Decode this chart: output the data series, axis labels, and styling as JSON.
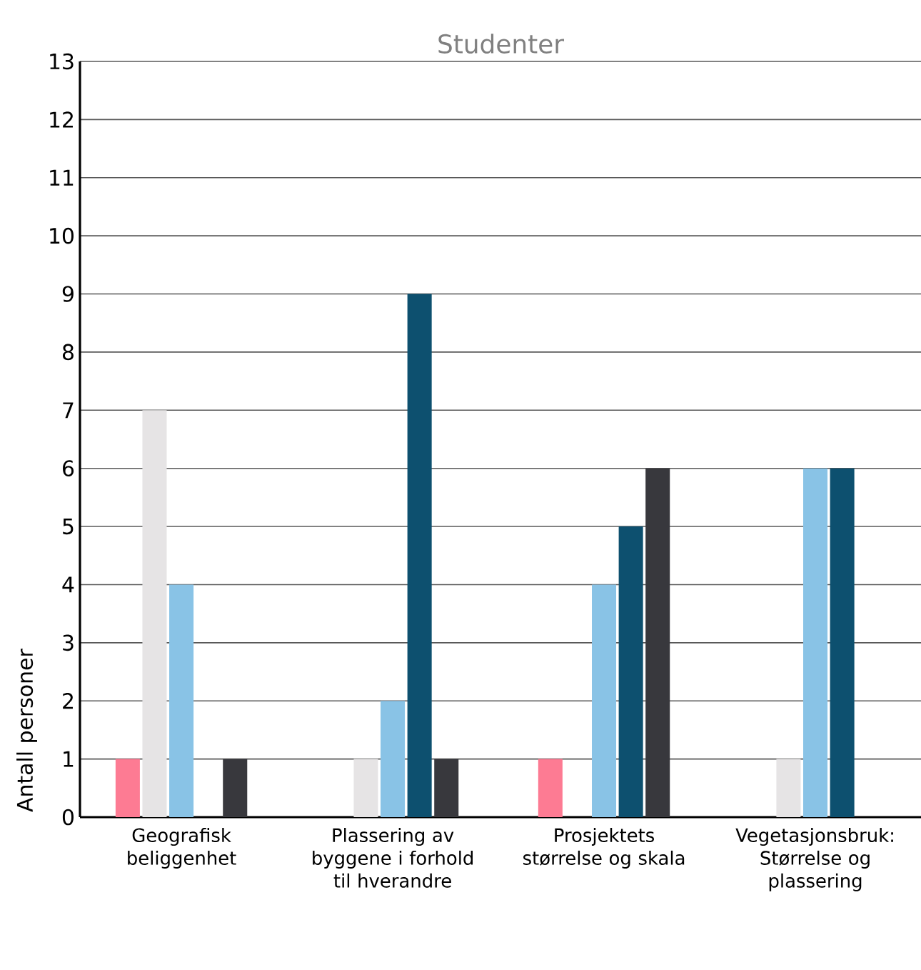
{
  "chart_data": {
    "type": "bar",
    "title": "Studenter",
    "ylabel": "Antall personer",
    "categories": [
      "Geografisk beliggenhet",
      "Plassering av byggene i forhold til hverandre",
      "Prosjektets størrelse og skala",
      "Vegetasjonsbruk: Størrelse og plassering"
    ],
    "series": [
      {
        "color": "#fd7b93",
        "values": [
          1,
          0,
          1,
          0
        ]
      },
      {
        "color": "#e6e4e5",
        "values": [
          7,
          1,
          0,
          1
        ]
      },
      {
        "color": "#89c3e6",
        "values": [
          4,
          2,
          4,
          6
        ]
      },
      {
        "color": "#0d506f",
        "values": [
          0,
          9,
          5,
          6
        ]
      },
      {
        "color": "#38383d",
        "values": [
          1,
          1,
          6,
          0
        ]
      }
    ],
    "ylim": [
      0,
      13
    ],
    "yticks": [
      0,
      1,
      2,
      3,
      4,
      5,
      6,
      7,
      8,
      9,
      10,
      11,
      12,
      13
    ],
    "grid": "y"
  }
}
